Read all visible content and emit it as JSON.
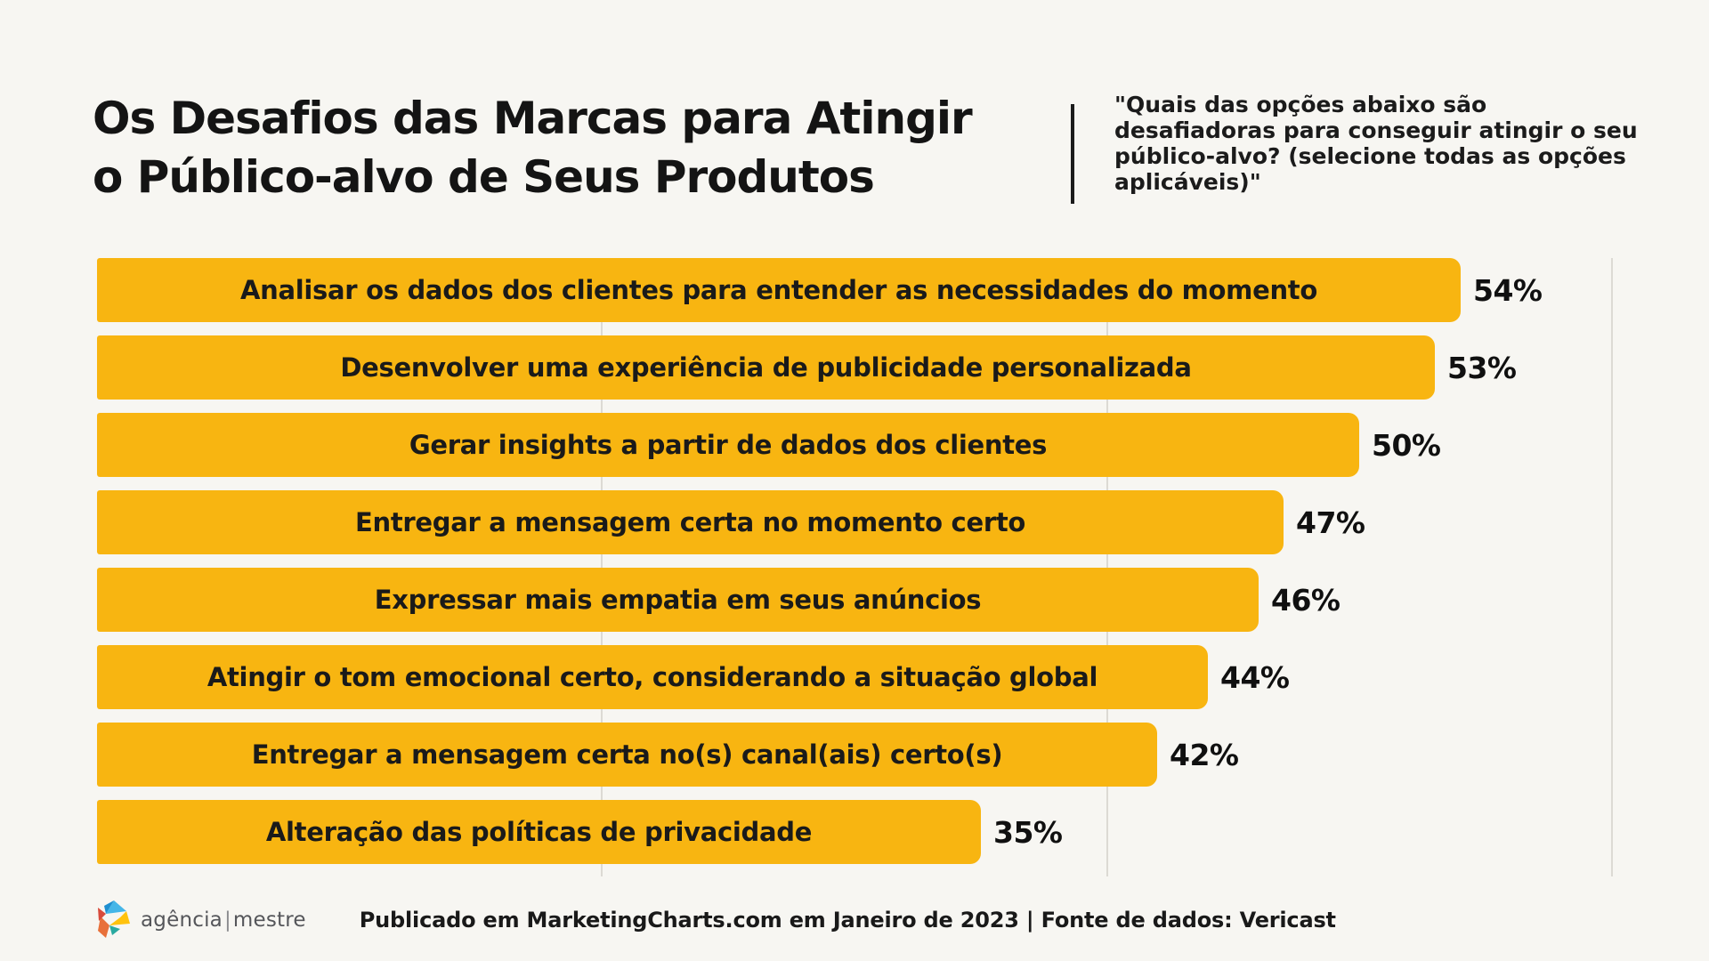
{
  "page": {
    "background_color": "#F7F6F2"
  },
  "header": {
    "title_lines": [
      "Os Desafios das Marcas para Atingir",
      "o Público-alvo de Seus Produtos"
    ],
    "quote_lines": [
      "\"Quais das opções abaixo são",
      "desafiadoras para conseguir atingir o seu",
      "público-alvo? (selecione todas as opções",
      "aplicáveis)\""
    ]
  },
  "chart_data": {
    "type": "bar",
    "orientation": "horizontal",
    "title": "Os Desafios das Marcas para Atingir o Público-alvo de Seus Produtos",
    "categories": [
      "Analisar os dados dos clientes para entender as necessidades do momento",
      "Desenvolver uma experiência de publicidade personalizada",
      "Gerar insights a partir de dados dos clientes",
      "Entregar a mensagem certa no momento certo",
      "Expressar mais empatia em seus anúncios",
      "Atingir o tom emocional certo, considerando a situação global",
      "Entregar a mensagem certa no(s) canal(ais) certo(s)",
      "Alteração das políticas de privacidade"
    ],
    "values": [
      54,
      53,
      50,
      47,
      46,
      44,
      42,
      35
    ],
    "value_suffix": "%",
    "xlim": [
      0,
      60
    ],
    "gridlines": [
      20,
      40,
      60
    ],
    "grid_on": true,
    "legend_position": "none",
    "bar_color": "#F8B511",
    "bar_text_color": "#1A1A1A",
    "value_text_color": "#101010",
    "grid_color": "#DCDAD4"
  },
  "footer": {
    "logo": {
      "text_primary": "agência",
      "separator": "|",
      "text_secondary": "mestre",
      "text_color": "#55565A",
      "icon_colors": {
        "light_blue": "#45B6E8",
        "dark_blue": "#1E8FD0",
        "yellow": "#FFC20D",
        "orange": "#E8703A",
        "red": "#D84B3B",
        "teal": "#2AA9A0"
      }
    },
    "source_text": "Publicado em MarketingCharts.com em Janeiro de 2023 | Fonte de dados: Vericast"
  }
}
